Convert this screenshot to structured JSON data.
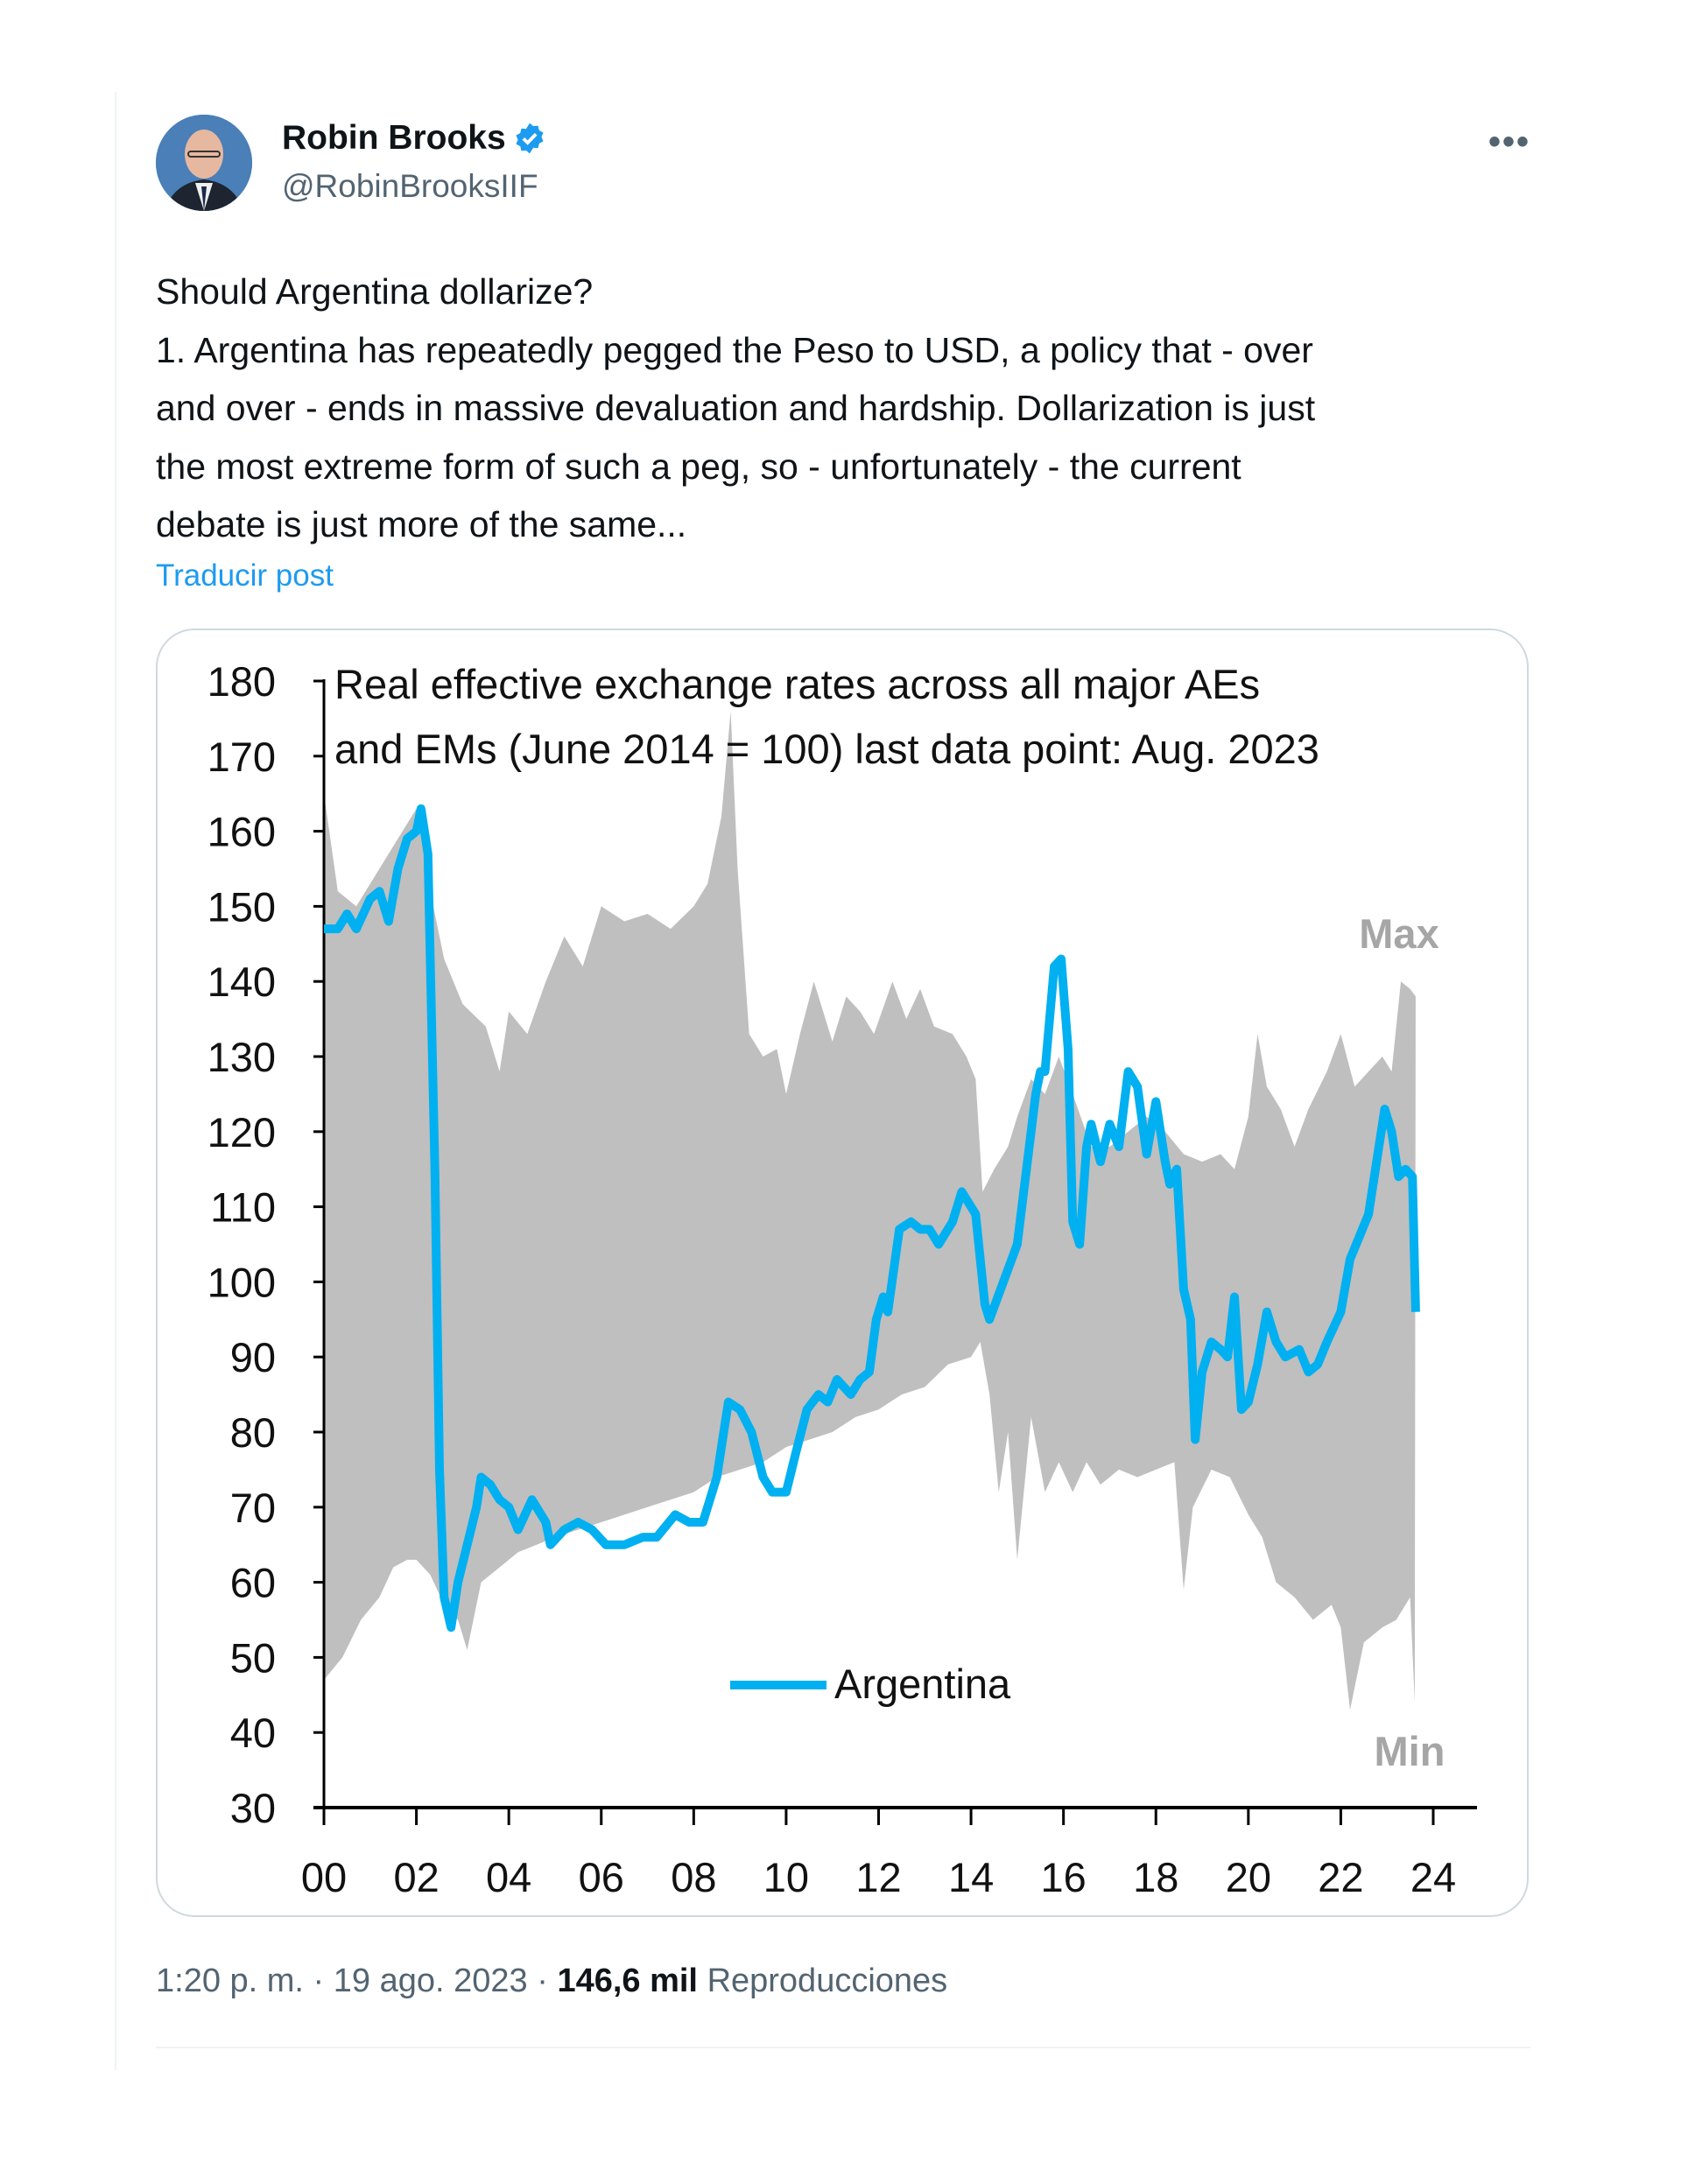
{
  "author": {
    "name": "Robin Brooks",
    "handle": "@RobinBrooksIIF",
    "verified": true
  },
  "more_icon": "more-horizontal-icon",
  "tweet": {
    "lines": [
      "Should Argentina dollarize?",
      "1. Argentina has repeatedly pegged the Peso to USD, a policy that - over",
      "and over - ends in massive devaluation and hardship. Dollarization is just",
      "the most extreme form of such a peg, so - unfortunately - the current",
      "debate is just more of the same..."
    ],
    "translate_label": "Traducir post"
  },
  "footer": {
    "time": "1:20 p. m.",
    "date": "19 ago. 2023",
    "views": "146,6 mil",
    "views_label": "Reproducciones",
    "sep": "·"
  },
  "colors": {
    "argentina": "#00b0f0",
    "range": "#bfbfbf",
    "link": "#1d9bf0"
  },
  "chart_data": {
    "type": "area",
    "title_lines": [
      "Real effective exchange rates across all major AEs",
      "and EMs (June 2014  = 100)  last data point: Aug. 2023"
    ],
    "ylim": [
      30,
      180
    ],
    "yticks": [
      "30",
      "40",
      "50",
      "60",
      "70",
      "80",
      "90",
      "100",
      "110",
      "120",
      "130",
      "140",
      "150",
      "160",
      "170",
      "180"
    ],
    "xlim": [
      2000,
      2024
    ],
    "xticks": [
      "00",
      "02",
      "04",
      "06",
      "08",
      "10",
      "12",
      "14",
      "16",
      "18",
      "20",
      "22",
      "24"
    ],
    "grid": false,
    "legend": {
      "position": "bottom-center",
      "label": "Argentina"
    },
    "annotations": {
      "max": "Max",
      "min": "Min"
    },
    "series": [
      {
        "name": "Argentina",
        "type": "line",
        "points": [
          [
            2000.0,
            147
          ],
          [
            2000.3,
            147
          ],
          [
            2000.5,
            149
          ],
          [
            2000.7,
            147
          ],
          [
            2001.0,
            151
          ],
          [
            2001.2,
            152
          ],
          [
            2001.4,
            148
          ],
          [
            2001.6,
            155
          ],
          [
            2001.8,
            159
          ],
          [
            2002.0,
            160
          ],
          [
            2002.1,
            163
          ],
          [
            2002.25,
            157
          ],
          [
            2002.4,
            115
          ],
          [
            2002.5,
            75
          ],
          [
            2002.6,
            58
          ],
          [
            2002.75,
            54
          ],
          [
            2002.9,
            60
          ],
          [
            2003.1,
            65
          ],
          [
            2003.3,
            70
          ],
          [
            2003.4,
            74
          ],
          [
            2003.6,
            73
          ],
          [
            2003.8,
            71
          ],
          [
            2004.0,
            70
          ],
          [
            2004.2,
            67
          ],
          [
            2004.5,
            71
          ],
          [
            2004.8,
            68
          ],
          [
            2004.9,
            65
          ],
          [
            2005.2,
            67
          ],
          [
            2005.5,
            68
          ],
          [
            2005.8,
            67
          ],
          [
            2006.1,
            65
          ],
          [
            2006.5,
            65
          ],
          [
            2006.9,
            66
          ],
          [
            2007.2,
            66
          ],
          [
            2007.6,
            69
          ],
          [
            2007.9,
            68
          ],
          [
            2008.2,
            68
          ],
          [
            2008.5,
            74
          ],
          [
            2008.75,
            84
          ],
          [
            2009.0,
            83
          ],
          [
            2009.25,
            80
          ],
          [
            2009.5,
            74
          ],
          [
            2009.7,
            72
          ],
          [
            2010.0,
            72
          ],
          [
            2010.2,
            77
          ],
          [
            2010.45,
            83
          ],
          [
            2010.7,
            85
          ],
          [
            2010.9,
            84
          ],
          [
            2011.1,
            87
          ],
          [
            2011.4,
            85
          ],
          [
            2011.6,
            87
          ],
          [
            2011.8,
            88
          ],
          [
            2011.95,
            95
          ],
          [
            2012.1,
            98
          ],
          [
            2012.2,
            96
          ],
          [
            2012.45,
            107
          ],
          [
            2012.7,
            108
          ],
          [
            2012.9,
            107
          ],
          [
            2013.1,
            107
          ],
          [
            2013.3,
            105
          ],
          [
            2013.6,
            108
          ],
          [
            2013.8,
            112
          ],
          [
            2014.0,
            110
          ],
          [
            2014.1,
            109
          ],
          [
            2014.3,
            97
          ],
          [
            2014.4,
            95
          ],
          [
            2014.7,
            100
          ],
          [
            2015.0,
            105
          ],
          [
            2015.2,
            115
          ],
          [
            2015.4,
            125
          ],
          [
            2015.5,
            128
          ],
          [
            2015.6,
            128
          ],
          [
            2015.8,
            142
          ],
          [
            2015.95,
            143
          ],
          [
            2016.1,
            131
          ],
          [
            2016.2,
            108
          ],
          [
            2016.35,
            105
          ],
          [
            2016.5,
            118
          ],
          [
            2016.6,
            121
          ],
          [
            2016.8,
            116
          ],
          [
            2017.0,
            121
          ],
          [
            2017.2,
            118
          ],
          [
            2017.4,
            128
          ],
          [
            2017.6,
            126
          ],
          [
            2017.8,
            117
          ],
          [
            2018.0,
            124
          ],
          [
            2018.2,
            116
          ],
          [
            2018.3,
            113
          ],
          [
            2018.45,
            115
          ],
          [
            2018.6,
            99
          ],
          [
            2018.75,
            95
          ],
          [
            2018.85,
            79
          ],
          [
            2019.0,
            88
          ],
          [
            2019.2,
            92
          ],
          [
            2019.4,
            91
          ],
          [
            2019.55,
            90
          ],
          [
            2019.7,
            98
          ],
          [
            2019.85,
            83
          ],
          [
            2020.0,
            84
          ],
          [
            2020.2,
            89
          ],
          [
            2020.4,
            96
          ],
          [
            2020.6,
            92
          ],
          [
            2020.8,
            90
          ],
          [
            2021.1,
            91
          ],
          [
            2021.3,
            88
          ],
          [
            2021.5,
            89
          ],
          [
            2021.7,
            92
          ],
          [
            2022.0,
            96
          ],
          [
            2022.2,
            103
          ],
          [
            2022.4,
            106
          ],
          [
            2022.6,
            109
          ],
          [
            2022.8,
            117
          ],
          [
            2022.95,
            123
          ],
          [
            2023.1,
            120
          ],
          [
            2023.25,
            114
          ],
          [
            2023.4,
            115
          ],
          [
            2023.55,
            114
          ],
          [
            2023.62,
            96
          ]
        ]
      },
      {
        "name": "Max",
        "type": "envelope-upper",
        "points": [
          [
            2000.0,
            165
          ],
          [
            2000.3,
            152
          ],
          [
            2000.7,
            150
          ],
          [
            2001.0,
            153
          ],
          [
            2001.5,
            158
          ],
          [
            2002.0,
            163
          ],
          [
            2002.3,
            152
          ],
          [
            2002.6,
            143
          ],
          [
            2003.0,
            137
          ],
          [
            2003.5,
            134
          ],
          [
            2003.8,
            128
          ],
          [
            2004.0,
            136
          ],
          [
            2004.4,
            133
          ],
          [
            2004.8,
            140
          ],
          [
            2005.2,
            146
          ],
          [
            2005.6,
            142
          ],
          [
            2006.0,
            150
          ],
          [
            2006.5,
            148
          ],
          [
            2007.0,
            149
          ],
          [
            2007.5,
            147
          ],
          [
            2008.0,
            150
          ],
          [
            2008.3,
            153
          ],
          [
            2008.6,
            162
          ],
          [
            2008.8,
            176
          ],
          [
            2008.95,
            155
          ],
          [
            2009.2,
            133
          ],
          [
            2009.5,
            130
          ],
          [
            2009.8,
            131
          ],
          [
            2010.0,
            125
          ],
          [
            2010.3,
            133
          ],
          [
            2010.6,
            140
          ],
          [
            2011.0,
            132
          ],
          [
            2011.3,
            138
          ],
          [
            2011.6,
            136
          ],
          [
            2011.9,
            133
          ],
          [
            2012.3,
            140
          ],
          [
            2012.6,
            135
          ],
          [
            2012.9,
            139
          ],
          [
            2013.2,
            134
          ],
          [
            2013.6,
            133
          ],
          [
            2013.9,
            130
          ],
          [
            2014.1,
            127
          ],
          [
            2014.25,
            112
          ],
          [
            2014.5,
            115
          ],
          [
            2014.8,
            118
          ],
          [
            2015.0,
            122
          ],
          [
            2015.3,
            127
          ],
          [
            2015.6,
            125
          ],
          [
            2015.9,
            130
          ],
          [
            2016.2,
            125
          ],
          [
            2016.6,
            118
          ],
          [
            2017.0,
            118
          ],
          [
            2017.4,
            120
          ],
          [
            2017.8,
            122
          ],
          [
            2018.2,
            120
          ],
          [
            2018.6,
            117
          ],
          [
            2019.0,
            116
          ],
          [
            2019.4,
            117
          ],
          [
            2019.7,
            115
          ],
          [
            2020.0,
            122
          ],
          [
            2020.2,
            133
          ],
          [
            2020.4,
            126
          ],
          [
            2020.7,
            123
          ],
          [
            2021.0,
            118
          ],
          [
            2021.3,
            123
          ],
          [
            2021.7,
            128
          ],
          [
            2022.0,
            133
          ],
          [
            2022.3,
            126
          ],
          [
            2022.6,
            128
          ],
          [
            2022.9,
            130
          ],
          [
            2023.1,
            128
          ],
          [
            2023.3,
            140
          ],
          [
            2023.5,
            139
          ],
          [
            2023.62,
            138
          ]
        ]
      },
      {
        "name": "Min",
        "type": "envelope-lower",
        "points": [
          [
            2000.0,
            47
          ],
          [
            2000.4,
            50
          ],
          [
            2000.8,
            55
          ],
          [
            2001.2,
            58
          ],
          [
            2001.5,
            62
          ],
          [
            2001.8,
            63
          ],
          [
            2002.0,
            63
          ],
          [
            2002.3,
            61
          ],
          [
            2002.6,
            57
          ],
          [
            2002.9,
            55
          ],
          [
            2003.1,
            51
          ],
          [
            2003.4,
            60
          ],
          [
            2003.8,
            62
          ],
          [
            2004.2,
            64
          ],
          [
            2004.6,
            65
          ],
          [
            2005.0,
            66
          ],
          [
            2005.5,
            67
          ],
          [
            2006.0,
            68
          ],
          [
            2006.5,
            69
          ],
          [
            2007.0,
            70
          ],
          [
            2007.5,
            71
          ],
          [
            2008.0,
            72
          ],
          [
            2008.5,
            74
          ],
          [
            2009.0,
            75
          ],
          [
            2009.5,
            76
          ],
          [
            2010.0,
            78
          ],
          [
            2010.5,
            79
          ],
          [
            2011.0,
            80
          ],
          [
            2011.5,
            82
          ],
          [
            2012.0,
            83
          ],
          [
            2012.5,
            85
          ],
          [
            2013.0,
            86
          ],
          [
            2013.5,
            89
          ],
          [
            2014.0,
            90
          ],
          [
            2014.2,
            92
          ],
          [
            2014.4,
            85
          ],
          [
            2014.6,
            72
          ],
          [
            2014.8,
            80
          ],
          [
            2015.0,
            63
          ],
          [
            2015.3,
            82
          ],
          [
            2015.6,
            72
          ],
          [
            2015.9,
            76
          ],
          [
            2016.2,
            72
          ],
          [
            2016.5,
            76
          ],
          [
            2016.8,
            73
          ],
          [
            2017.2,
            75
          ],
          [
            2017.6,
            74
          ],
          [
            2018.0,
            75
          ],
          [
            2018.4,
            76
          ],
          [
            2018.6,
            59
          ],
          [
            2018.8,
            70
          ],
          [
            2019.2,
            75
          ],
          [
            2019.6,
            74
          ],
          [
            2020.0,
            69
          ],
          [
            2020.3,
            66
          ],
          [
            2020.6,
            60
          ],
          [
            2021.0,
            58
          ],
          [
            2021.4,
            55
          ],
          [
            2021.8,
            57
          ],
          [
            2022.0,
            54
          ],
          [
            2022.2,
            43
          ],
          [
            2022.5,
            52
          ],
          [
            2022.9,
            54
          ],
          [
            2023.2,
            55
          ],
          [
            2023.5,
            58
          ],
          [
            2023.6,
            44
          ]
        ]
      }
    ]
  }
}
